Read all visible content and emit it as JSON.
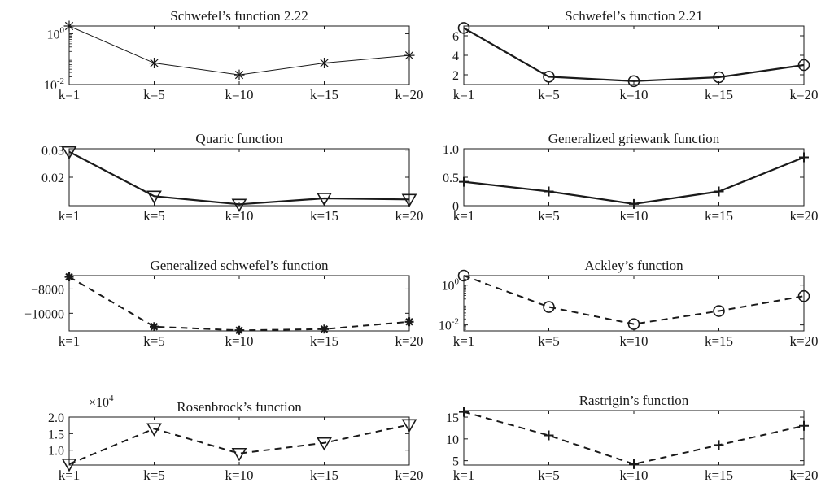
{
  "chart_data": [
    {
      "type": "line",
      "title": "Schwefel’s function 2.22",
      "yscale": "log",
      "categories": [
        "k=1",
        "k=5",
        "k=10",
        "k=15",
        "k=20"
      ],
      "values": [
        2.0,
        0.07,
        0.024,
        0.07,
        0.14
      ],
      "ylim": [
        0.01,
        2.0
      ],
      "yticks": [
        {
          "v": 1,
          "base": "10",
          "exp": "0"
        },
        {
          "v": 0.01,
          "base": "10",
          "exp": "-2"
        }
      ],
      "marker": "star",
      "line": "thin",
      "color": "#1a1a1a"
    },
    {
      "type": "line",
      "title": "Schwefel’s function 2.21",
      "categories": [
        "k=1",
        "k=5",
        "k=10",
        "k=15",
        "k=20"
      ],
      "values": [
        6.8,
        1.8,
        1.35,
        1.75,
        3.0
      ],
      "ylim": [
        1.0,
        7.0
      ],
      "yticks": [
        {
          "v": 6,
          "label": "6"
        },
        {
          "v": 4,
          "label": "4"
        },
        {
          "v": 2,
          "label": "2"
        }
      ],
      "marker": "circle",
      "line": "solid",
      "color": "#1a1a1a"
    },
    {
      "type": "line",
      "title": "Quaric function",
      "categories": [
        "k=1",
        "k=5",
        "k=10",
        "k=15",
        "k=20"
      ],
      "values": [
        0.0294,
        0.013,
        0.01,
        0.0122,
        0.0118
      ],
      "ylim": [
        0.0095,
        0.0305
      ],
      "yticks": [
        {
          "v": 0.03,
          "label": "0.03"
        },
        {
          "v": 0.02,
          "label": "0.02"
        }
      ],
      "marker": "triangle-down",
      "line": "solid",
      "color": "#1a1a1a"
    },
    {
      "type": "line",
      "title": "Generalized griewank function",
      "categories": [
        "k=1",
        "k=5",
        "k=10",
        "k=15",
        "k=20"
      ],
      "values": [
        0.42,
        0.25,
        0.03,
        0.25,
        0.85
      ],
      "ylim": [
        0,
        1.0
      ],
      "yticks": [
        {
          "v": 1.0,
          "label": "1.0"
        },
        {
          "v": 0.5,
          "label": "0.5"
        },
        {
          "v": 0,
          "label": "0"
        }
      ],
      "marker": "plus",
      "line": "solid",
      "color": "#1a1a1a"
    },
    {
      "type": "line",
      "title": "Generalized schwefel’s function",
      "categories": [
        "k=1",
        "k=5",
        "k=10",
        "k=15",
        "k=20"
      ],
      "values": [
        -7000,
        -11100,
        -11400,
        -11300,
        -10700
      ],
      "ylim": [
        -11450,
        -6900
      ],
      "yticks": [
        {
          "v": -8000,
          "label": "−8000"
        },
        {
          "v": -10000,
          "label": "−10000"
        }
      ],
      "marker": "asterisk",
      "line": "dashed",
      "color": "#1a1a1a"
    },
    {
      "type": "line",
      "title": "Ackley’s function",
      "yscale": "log",
      "categories": [
        "k=1",
        "k=5",
        "k=10",
        "k=15",
        "k=20"
      ],
      "values": [
        3.0,
        0.08,
        0.011,
        0.05,
        0.28
      ],
      "ylim": [
        0.005,
        3.0
      ],
      "yticks": [
        {
          "v": 1,
          "base": "10",
          "exp": "0"
        },
        {
          "v": 0.01,
          "base": "10",
          "exp": "-2"
        }
      ],
      "marker": "circle",
      "line": "dashed",
      "color": "#1a1a1a"
    },
    {
      "type": "line",
      "title": "Rosenbrock’s function",
      "categories": [
        "k=1",
        "k=5",
        "k=10",
        "k=15",
        "k=20"
      ],
      "values": [
        0.58,
        1.65,
        0.9,
        1.22,
        1.77
      ],
      "ylim": [
        0.55,
        2.0
      ],
      "yticks": [
        {
          "v": 2.0,
          "label": "2.0"
        },
        {
          "v": 1.5,
          "label": "1.5"
        },
        {
          "v": 1.0,
          "label": "1.0"
        }
      ],
      "multiplier": {
        "base": "×10",
        "exp": "4"
      },
      "marker": "triangle-down",
      "line": "dashed",
      "color": "#1a1a1a"
    },
    {
      "type": "line",
      "title": "Rastrigin’s function",
      "categories": [
        "k=1",
        "k=5",
        "k=10",
        "k=15",
        "k=20"
      ],
      "values": [
        16.2,
        10.8,
        4.2,
        8.6,
        13.0
      ],
      "ylim": [
        4.0,
        16.5
      ],
      "yticks": [
        {
          "v": 15,
          "label": "15"
        },
        {
          "v": 10,
          "label": "10"
        },
        {
          "v": 5,
          "label": "5"
        }
      ],
      "marker": "plus",
      "line": "dashed",
      "color": "#1a1a1a"
    }
  ]
}
